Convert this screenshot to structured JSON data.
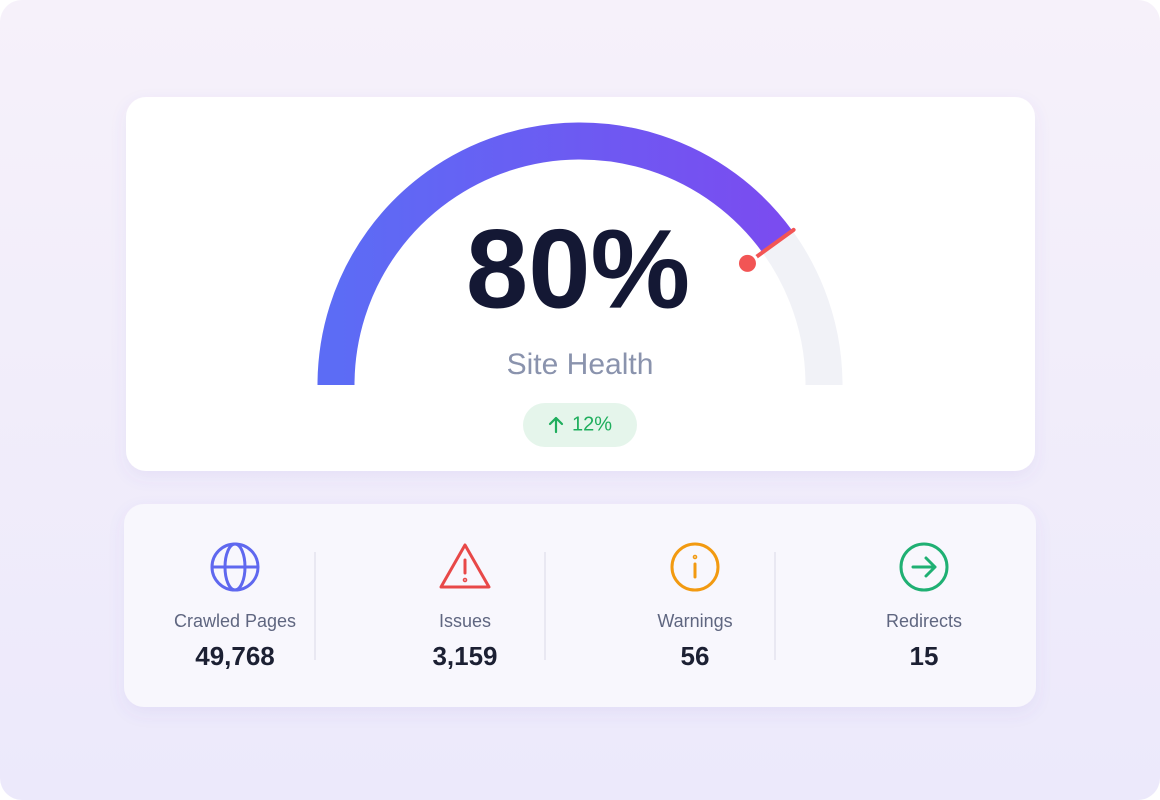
{
  "gauge": {
    "value": 80,
    "value_label": "80%",
    "range": [
      0,
      100
    ],
    "label": "Site Health",
    "change": "12%"
  },
  "stats": [
    {
      "label": "Crawled Pages",
      "value": "49,768"
    },
    {
      "label": "Issues",
      "value": "3,159"
    },
    {
      "label": "Warnings",
      "value": "56"
    },
    {
      "label": "Redirects",
      "value": "15"
    }
  ]
}
